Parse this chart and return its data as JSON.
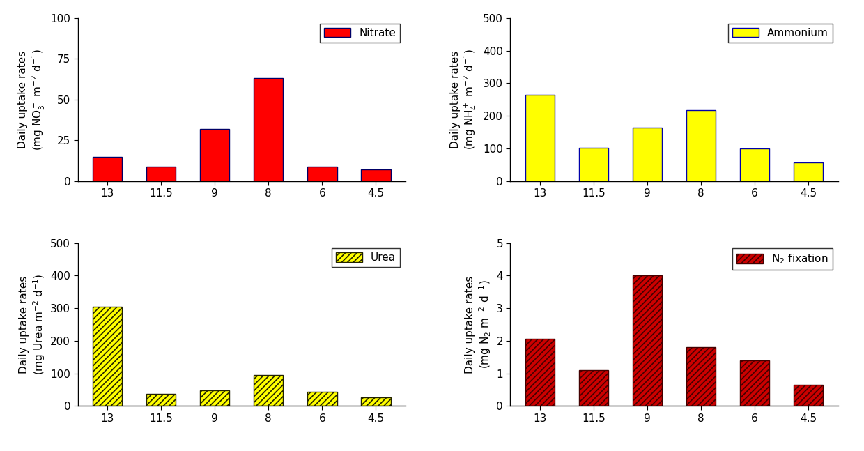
{
  "categories": [
    "13",
    "11.5",
    "9",
    "8",
    "6",
    "4.5"
  ],
  "nitrate_values": [
    15,
    9,
    32,
    63,
    9,
    7
  ],
  "ammonium_values": [
    265,
    103,
    165,
    218,
    100,
    58
  ],
  "urea_values": [
    305,
    38,
    48,
    95,
    43,
    27
  ],
  "n2fix_values": [
    2.05,
    1.1,
    4.0,
    1.8,
    1.4,
    0.65
  ],
  "nitrate_color": "#FF0000",
  "ammonium_color": "#FFFF00",
  "urea_color": "#FFFF00",
  "n2fix_color": "#CC0000",
  "ammonium_edge_color": "#0000AA",
  "nitrate_ylim": [
    0,
    100
  ],
  "ammonium_ylim": [
    0,
    500
  ],
  "urea_ylim": [
    0,
    500
  ],
  "n2fix_ylim": [
    0,
    5
  ],
  "nitrate_yticks": [
    0,
    25,
    50,
    75,
    100
  ],
  "ammonium_yticks": [
    0,
    100,
    200,
    300,
    400,
    500
  ],
  "urea_yticks": [
    0,
    100,
    200,
    300,
    400,
    500
  ],
  "n2fix_yticks": [
    0,
    1,
    2,
    3,
    4,
    5
  ],
  "nitrate_ylabel": "Daily uptake rates\n(mg NO$_3^-$ m$^{-2}$ d$^{-1}$)",
  "ammonium_ylabel": "Daily uptake rates\n(mg NH$_4^+$ m$^{-2}$ d$^{-1}$)",
  "urea_ylabel": "Daily uptake rates\n(mg Urea m$^{-2}$ d$^{-1}$)",
  "n2fix_ylabel": "Daily uptake rates\n(mg N$_2$ m$^{-2}$ d$^{-1}$)",
  "nitrate_legend": "Nitrate",
  "ammonium_legend": "Ammonium",
  "urea_legend": "Urea",
  "n2fix_legend": "N$_2$ fixation",
  "bar_width": 0.55,
  "fontsize": 11,
  "tick_fontsize": 11
}
